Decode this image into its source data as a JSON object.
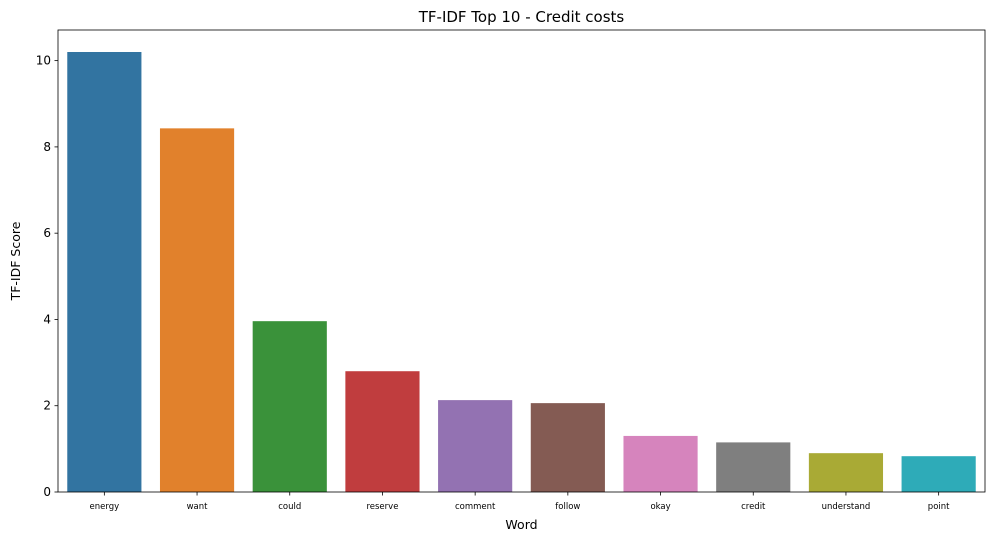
{
  "chart_data": {
    "type": "bar",
    "title": "TF-IDF Top 10 - Credit costs",
    "xlabel": "Word",
    "ylabel": "TF-IDF Score",
    "categories": [
      "energy",
      "want",
      "could",
      "reserve",
      "comment",
      "follow",
      "okay",
      "credit",
      "understand",
      "point"
    ],
    "values": [
      10.2,
      8.43,
      3.96,
      2.8,
      2.13,
      2.06,
      1.3,
      1.15,
      0.9,
      0.83
    ],
    "colors": [
      "#3274a1",
      "#e1812c",
      "#3a923a",
      "#c03d3e",
      "#9372b2",
      "#845b53",
      "#d684bd",
      "#7f7f7f",
      "#a9aa35",
      "#2eabb8"
    ],
    "ylim": [
      0,
      10.71
    ],
    "yticks": [
      0,
      2,
      4,
      6,
      8,
      10
    ],
    "ytick_labels": [
      "0",
      "2",
      "4",
      "6",
      "8",
      "10"
    ],
    "grid": false,
    "legend": "none"
  }
}
